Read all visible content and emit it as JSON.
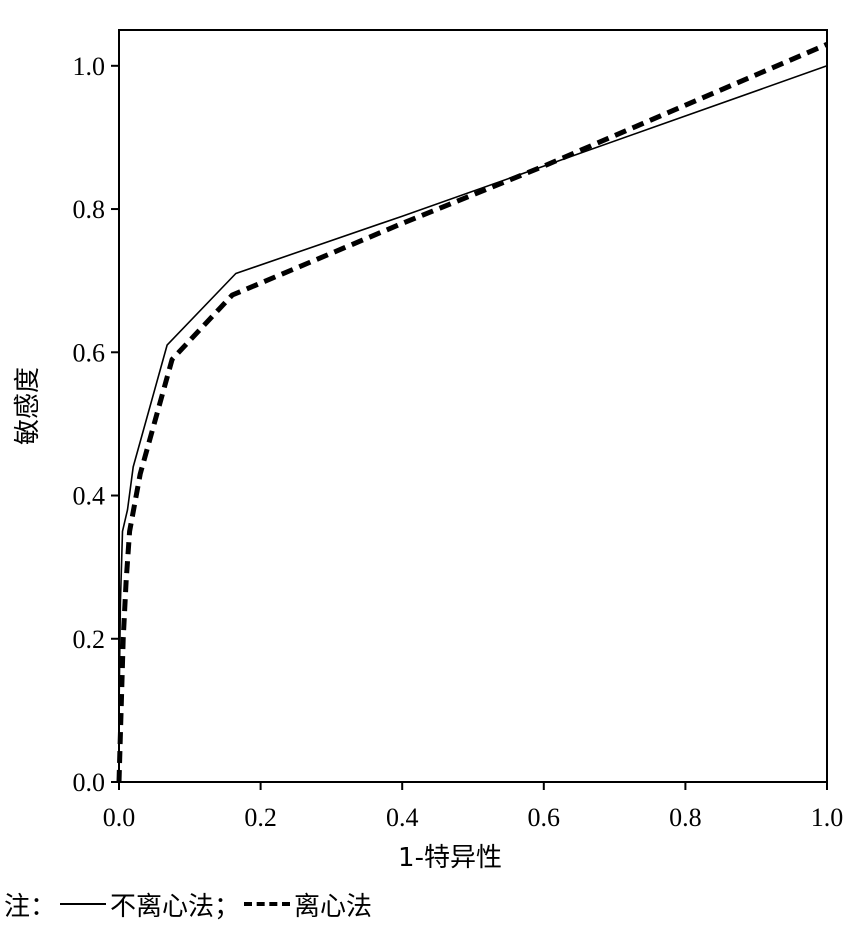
{
  "chart_data": {
    "type": "line",
    "xlabel": "1-特异性",
    "ylabel": "敏感度",
    "xlim": [
      0,
      1
    ],
    "ylim": [
      0,
      1.05
    ],
    "x_ticks": [
      "0.0",
      "0.2",
      "0.4",
      "0.6",
      "0.8",
      "1.0"
    ],
    "y_ticks": [
      "0.0",
      "0.2",
      "0.4",
      "0.6",
      "0.8",
      "1.0"
    ],
    "grid": false,
    "series": [
      {
        "name": "不离心法",
        "style": "solid",
        "color": "#000000",
        "x": [
          0.0,
          0.0,
          0.002,
          0.005,
          0.012,
          0.02,
          0.068,
          0.165,
          0.4,
          0.6,
          1.0
        ],
        "y": [
          0.0,
          0.1,
          0.25,
          0.35,
          0.38,
          0.44,
          0.61,
          0.71,
          0.79,
          0.86,
          1.0
        ]
      },
      {
        "name": "离心法",
        "style": "dashed",
        "color": "#000000",
        "x": [
          0.0,
          0.003,
          0.006,
          0.01,
          0.015,
          0.03,
          0.075,
          0.16,
          0.4,
          0.6,
          1.0
        ],
        "y": [
          0.0,
          0.1,
          0.2,
          0.28,
          0.35,
          0.43,
          0.59,
          0.68,
          0.78,
          0.86,
          1.03
        ]
      }
    ]
  },
  "note": {
    "prefix": "注：",
    "solid_label": "不离心法；",
    "dashed_label": "离心法"
  }
}
